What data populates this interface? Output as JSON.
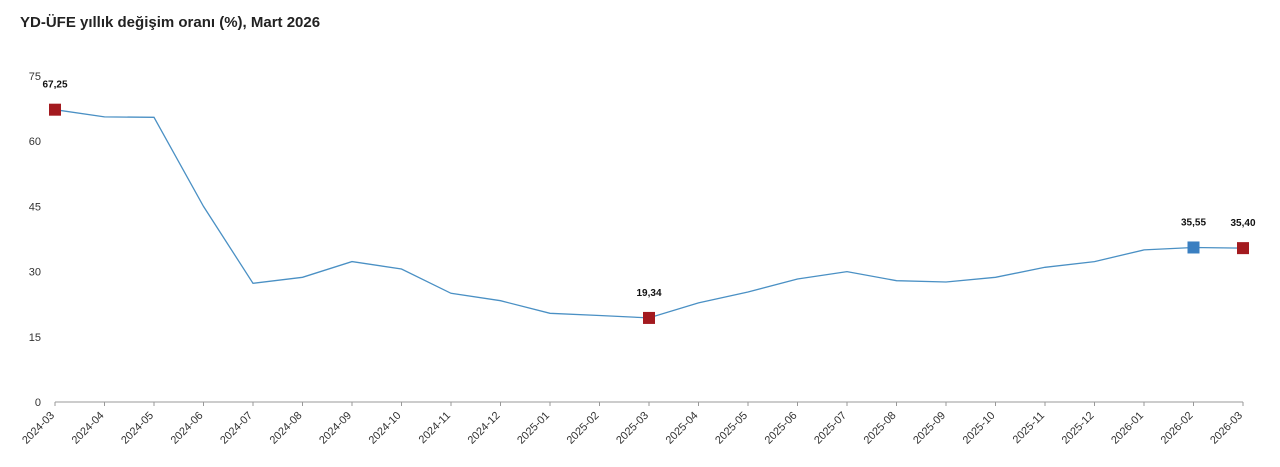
{
  "title": "YD-ÜFE yıllık değişim oranı (%), Mart 2026",
  "colors": {
    "line": "#4a90c4",
    "axis": "#999999",
    "marker_red": "#a31a1f",
    "marker_blue": "#3a7fc1"
  },
  "chart_data": {
    "type": "line",
    "title": "YD-ÜFE yıllık değişim oranı (%), Mart 2026",
    "xlabel": "",
    "ylabel": "",
    "ylim": [
      0,
      75
    ],
    "yticks": [
      "0",
      "15",
      "30",
      "45",
      "60",
      "75"
    ],
    "categories": [
      "2024-03",
      "2024-04",
      "2024-05",
      "2024-06",
      "2024-07",
      "2024-08",
      "2024-09",
      "2024-10",
      "2024-11",
      "2024-12",
      "2025-01",
      "2025-02",
      "2025-03",
      "2025-04",
      "2025-05",
      "2025-06",
      "2025-07",
      "2025-08",
      "2025-09",
      "2025-10",
      "2025-11",
      "2025-12",
      "2026-01",
      "2026-02",
      "2026-03"
    ],
    "values": [
      67.25,
      65.6,
      65.5,
      45.0,
      27.3,
      28.7,
      32.3,
      30.6,
      25.0,
      23.3,
      20.4,
      19.9,
      19.34,
      22.8,
      25.3,
      28.3,
      30.0,
      27.9,
      27.6,
      28.7,
      31.0,
      32.3,
      35.0,
      35.55,
      35.4
    ],
    "grid": false,
    "highlights": [
      {
        "index": 0,
        "label": "67,25",
        "color": "red"
      },
      {
        "index": 12,
        "label": "19,34",
        "color": "red"
      },
      {
        "index": 23,
        "label": "35,55",
        "color": "blue"
      },
      {
        "index": 24,
        "label": "35,40",
        "color": "red"
      }
    ]
  }
}
